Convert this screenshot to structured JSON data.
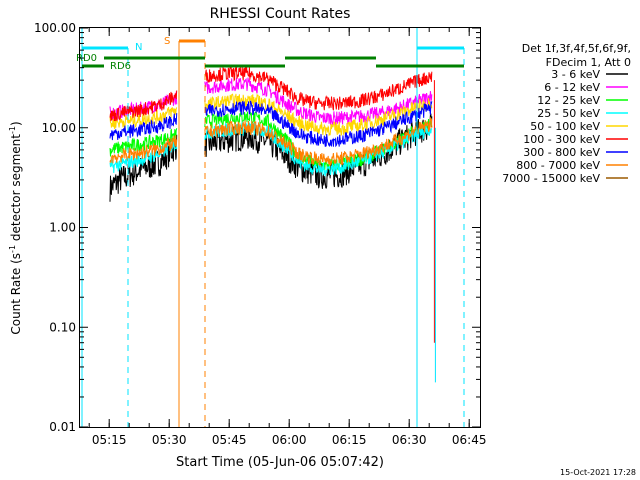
{
  "chart_data": {
    "type": "line",
    "title": "RHESSI Count Rates",
    "xlabel": "Start Time (05-Jun-06 05:07:42)",
    "ylabel_main": "Count Rate (s",
    "ylabel_sup": "-1",
    "ylabel_tail": " detector segment",
    "ylabel_sup2": "-1",
    "ylabel_close": ")",
    "y_scale": "log",
    "ylim": [
      0.01,
      100
    ],
    "xlim_minutes": [
      0,
      100
    ],
    "y_ticks": [
      {
        "value": 0.01,
        "label": "0.01"
      },
      {
        "value": 0.1,
        "label": "0.10"
      },
      {
        "value": 1,
        "label": "1.00"
      },
      {
        "value": 10,
        "label": "10.00"
      },
      {
        "value": 100,
        "label": "100.00"
      }
    ],
    "x_ticks": [
      {
        "minutes": 7.3,
        "label": "05:15"
      },
      {
        "minutes": 22.3,
        "label": "05:30"
      },
      {
        "minutes": 37.3,
        "label": "05:45"
      },
      {
        "minutes": 52.3,
        "label": "06:00"
      },
      {
        "minutes": 67.3,
        "label": "06:15"
      },
      {
        "minutes": 82.3,
        "label": "06:30"
      },
      {
        "minutes": 97.3,
        "label": "06:45"
      }
    ],
    "legend_header": [
      "Det 1f,3f,4f,5f,6f,9f,",
      "FDecim 1, Att 0"
    ],
    "series": [
      {
        "name": "3 - 6 keV",
        "color": "#000000",
        "values": [
          [
            7.5,
            2.5
          ],
          [
            10,
            3.0
          ],
          [
            15,
            3.8
          ],
          [
            20,
            4.5
          ],
          [
            24,
            6.5
          ],
          [
            31,
            6.8
          ],
          [
            37,
            7.6
          ],
          [
            42,
            8.2
          ],
          [
            47,
            7.2
          ],
          [
            52,
            5.0
          ],
          [
            55,
            3.9
          ],
          [
            60,
            3.3
          ],
          [
            65,
            3.4
          ],
          [
            70,
            4.2
          ],
          [
            75,
            5.2
          ],
          [
            80,
            7.2
          ],
          [
            84,
            9.0
          ],
          [
            88,
            10.5
          ]
        ]
      },
      {
        "name": "6 - 12 keV",
        "color": "#ff00ff",
        "values": [
          [
            7.5,
            14
          ],
          [
            10,
            14.5
          ],
          [
            15,
            15.5
          ],
          [
            20,
            17
          ],
          [
            24,
            20
          ],
          [
            31,
            25
          ],
          [
            37,
            27
          ],
          [
            42,
            27.5
          ],
          [
            47,
            24
          ],
          [
            52,
            17
          ],
          [
            55,
            14.5
          ],
          [
            60,
            12.5
          ],
          [
            65,
            12.5
          ],
          [
            70,
            13
          ],
          [
            75,
            14
          ],
          [
            80,
            16
          ],
          [
            84,
            18
          ],
          [
            88,
            21
          ]
        ]
      },
      {
        "name": "12 - 25 keV",
        "color": "#00ff00",
        "values": [
          [
            7.5,
            6.0
          ],
          [
            10,
            6.3
          ],
          [
            15,
            6.8
          ],
          [
            20,
            7.5
          ],
          [
            24,
            8.5
          ],
          [
            31,
            11.5
          ],
          [
            37,
            12.5
          ],
          [
            42,
            13
          ],
          [
            47,
            11.5
          ],
          [
            52,
            7.2
          ],
          [
            55,
            5.0
          ],
          [
            60,
            4.2
          ],
          [
            65,
            4.3
          ],
          [
            70,
            4.8
          ],
          [
            75,
            5.8
          ],
          [
            80,
            7.5
          ],
          [
            84,
            9.5
          ],
          [
            88,
            11
          ]
        ]
      },
      {
        "name": "25 - 50 keV",
        "color": "#00ffff",
        "values": [
          [
            7.5,
            4.0
          ],
          [
            10,
            4.3
          ],
          [
            15,
            4.8
          ],
          [
            20,
            5.5
          ],
          [
            24,
            7.0
          ],
          [
            31,
            8.8
          ],
          [
            37,
            9.5
          ],
          [
            42,
            10
          ],
          [
            47,
            9.0
          ],
          [
            52,
            6.0
          ],
          [
            55,
            4.4
          ],
          [
            60,
            3.8
          ],
          [
            65,
            4.0
          ],
          [
            70,
            4.6
          ],
          [
            75,
            5.5
          ],
          [
            80,
            7.0
          ],
          [
            84,
            8.5
          ],
          [
            88,
            10
          ]
        ]
      },
      {
        "name": "50 - 100 keV",
        "color": "#ffd700",
        "values": [
          [
            7.5,
            11
          ],
          [
            10,
            11.5
          ],
          [
            15,
            12
          ],
          [
            20,
            13
          ],
          [
            24,
            15
          ],
          [
            31,
            17
          ],
          [
            37,
            18.5
          ],
          [
            42,
            19
          ],
          [
            47,
            17.5
          ],
          [
            52,
            13
          ],
          [
            55,
            11
          ],
          [
            60,
            9.8
          ],
          [
            65,
            9.8
          ],
          [
            70,
            10.5
          ],
          [
            75,
            12
          ],
          [
            80,
            14
          ],
          [
            84,
            16
          ],
          [
            88,
            18
          ]
        ]
      },
      {
        "name": "100 - 300 keV",
        "color": "#ff0000",
        "values": [
          [
            7.5,
            13
          ],
          [
            10,
            14
          ],
          [
            15,
            15
          ],
          [
            20,
            17
          ],
          [
            24,
            21
          ],
          [
            31,
            33
          ],
          [
            37,
            35
          ],
          [
            42,
            35
          ],
          [
            47,
            31
          ],
          [
            52,
            23
          ],
          [
            55,
            19
          ],
          [
            60,
            17.5
          ],
          [
            65,
            17.5
          ],
          [
            70,
            18.5
          ],
          [
            75,
            21
          ],
          [
            80,
            25
          ],
          [
            84,
            29
          ],
          [
            88,
            33
          ]
        ]
      },
      {
        "name": "300 - 800 keV",
        "color": "#0000ff",
        "values": [
          [
            7.5,
            8.5
          ],
          [
            10,
            9
          ],
          [
            15,
            9.5
          ],
          [
            20,
            10.5
          ],
          [
            24,
            12
          ],
          [
            31,
            14.5
          ],
          [
            37,
            15.5
          ],
          [
            42,
            16
          ],
          [
            47,
            14.5
          ],
          [
            52,
            10.5
          ],
          [
            55,
            8.5
          ],
          [
            60,
            7.5
          ],
          [
            65,
            7.6
          ],
          [
            70,
            8.2
          ],
          [
            75,
            9.5
          ],
          [
            80,
            11.5
          ],
          [
            84,
            13.5
          ],
          [
            88,
            16
          ]
        ]
      },
      {
        "name": "800 - 7000 keV",
        "color": "#ff8000",
        "values": [
          [
            7.5,
            5.0
          ],
          [
            10,
            5.2
          ],
          [
            15,
            5.6
          ],
          [
            20,
            6.2
          ],
          [
            24,
            7.2
          ],
          [
            31,
            9.0
          ],
          [
            37,
            9.8
          ],
          [
            42,
            10.2
          ],
          [
            47,
            9.2
          ],
          [
            52,
            6.6
          ],
          [
            55,
            5.4
          ],
          [
            60,
            4.8
          ],
          [
            65,
            4.9
          ],
          [
            70,
            5.4
          ],
          [
            75,
            6.3
          ],
          [
            80,
            7.8
          ],
          [
            84,
            9.5
          ],
          [
            88,
            11
          ]
        ]
      },
      {
        "name": "7000 - 15000 keV",
        "color": "#9b5a00",
        "values": []
      }
    ],
    "annotations": [
      {
        "text": "N",
        "color": "#00e5ff"
      },
      {
        "text": "S",
        "color": "#ff8000"
      },
      {
        "text": "RD0",
        "color": "#008000"
      },
      {
        "text": "RD6",
        "color": "#008000"
      }
    ],
    "footer_date": "15-Oct-2021 17:28"
  }
}
